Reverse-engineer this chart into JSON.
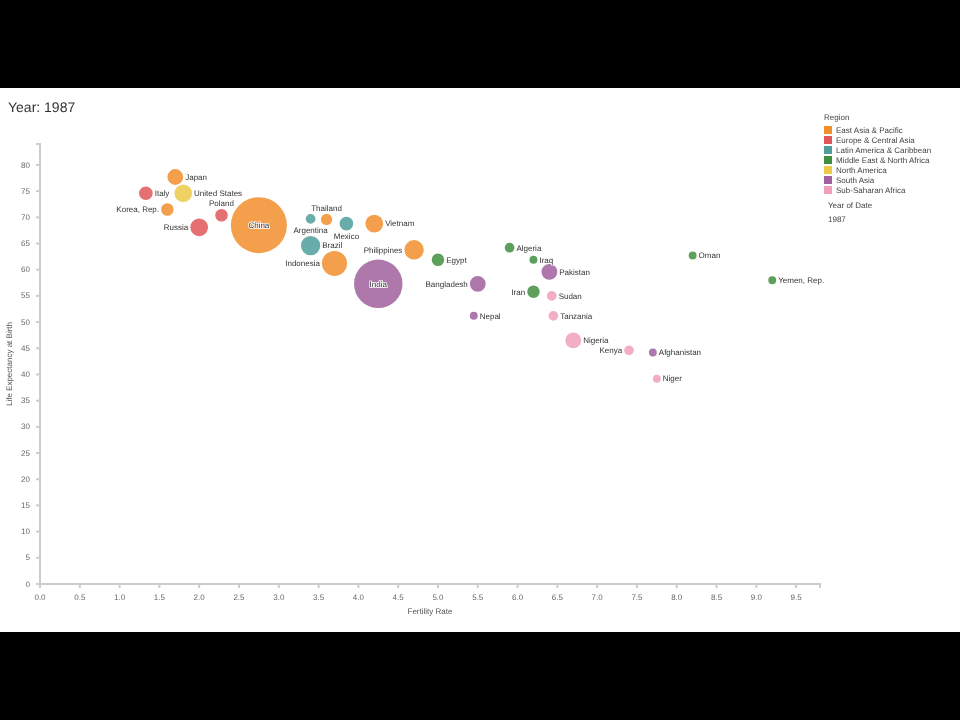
{
  "chart_data": {
    "type": "bubble",
    "title": "Year: 1987",
    "xlabel": "Fertility Rate",
    "ylabel": "Life Expectancy at Birth",
    "legend_title": "Region",
    "legend": "top right",
    "marker": "circle",
    "grid": false,
    "xlim": [
      0,
      9.8
    ],
    "ylim": [
      0,
      84
    ],
    "xticks": [
      {
        "value": 0,
        "label": "0.0"
      },
      {
        "value": 0.5,
        "label": "0.5"
      },
      {
        "value": 1,
        "label": "1.0"
      },
      {
        "value": 1.5,
        "label": "1.5"
      },
      {
        "value": 2,
        "label": "2.0"
      },
      {
        "value": 2.5,
        "label": "2.5"
      },
      {
        "value": 3,
        "label": "3.0"
      },
      {
        "value": 3.5,
        "label": "3.5"
      },
      {
        "value": 4,
        "label": "4.0"
      },
      {
        "value": 4.5,
        "label": "4.5"
      },
      {
        "value": 5,
        "label": "5.0"
      },
      {
        "value": 5.5,
        "label": "5.5"
      },
      {
        "value": 6,
        "label": "6.0"
      },
      {
        "value": 6.5,
        "label": "6.5"
      },
      {
        "value": 7,
        "label": "7.0"
      },
      {
        "value": 7.5,
        "label": "7.5"
      },
      {
        "value": 8,
        "label": "8.0"
      },
      {
        "value": 8.5,
        "label": "8.5"
      },
      {
        "value": 9,
        "label": "9.0"
      },
      {
        "value": 9.5,
        "label": "9.5"
      }
    ],
    "yticks": [
      0,
      5,
      10,
      15,
      20,
      25,
      30,
      35,
      40,
      45,
      50,
      55,
      60,
      65,
      70,
      75,
      80
    ],
    "series": [
      {
        "name": "East Asia & Pacific",
        "color": "#f28e2b",
        "x": [
          1.7,
          1.6,
          2.75,
          3.7,
          4.2,
          4.7,
          3.6
        ],
        "values": [
          77.7,
          71.5,
          68.5,
          61.2,
          68.8,
          63.8,
          69.6
        ],
        "sizes": [
          0.08,
          0.05,
          1,
          0.2,
          0.1,
          0.12,
          0.04
        ]
      },
      {
        "name": "Europe & Central Asia",
        "color": "#e15759",
        "x": [
          1.33,
          2.0,
          2.28
        ],
        "values": [
          74.6,
          68.1,
          70.4
        ],
        "sizes": [
          0.06,
          0.1,
          0.05
        ]
      },
      {
        "name": "Latin America & Caribbean",
        "color": "#4e9f9a",
        "x": [
          3.4,
          3.85,
          3.4
        ],
        "values": [
          64.6,
          68.8,
          69.7
        ],
        "sizes": [
          0.12,
          0.06,
          0.03
        ]
      },
      {
        "name": "Middle East & North Africa",
        "color": "#3f8f3f",
        "x": [
          5.0,
          5.9,
          6.2,
          6.2,
          8.2,
          9.2
        ],
        "values": [
          61.9,
          64.2,
          61.9,
          55.8,
          62.7,
          58.0
        ],
        "sizes": [
          0.05,
          0.03,
          0.02,
          0.05,
          0.02,
          0.02
        ]
      },
      {
        "name": "North America",
        "color": "#edc948",
        "x": [
          1.8
        ],
        "values": [
          74.6
        ],
        "sizes": [
          0.1
        ]
      },
      {
        "name": "South Asia",
        "color": "#a0609f",
        "x": [
          4.25,
          6.4,
          5.5,
          7.7,
          5.45
        ],
        "values": [
          57.3,
          59.6,
          57.3,
          44.2,
          51.2
        ],
        "sizes": [
          0.75,
          0.08,
          0.08,
          0.02,
          0.02
        ]
      },
      {
        "name": "Sub-Saharan Africa",
        "color": "#f0a0b8",
        "x": [
          6.7,
          7.4,
          6.43,
          6.45,
          7.75
        ],
        "values": [
          46.5,
          44.6,
          55.0,
          51.2,
          39.2
        ],
        "sizes": [
          0.08,
          0.03,
          0.03,
          0.03,
          0.02
        ]
      }
    ],
    "annotations": [
      {
        "text": "Japan",
        "x": 1.7,
        "y": 77.7
      },
      {
        "text": "Korea, Rep.",
        "x": 1.6,
        "y": 71.5
      },
      {
        "text": "China",
        "x": 2.75,
        "y": 68.5
      },
      {
        "text": "Indonesia",
        "x": 3.7,
        "y": 61.2
      },
      {
        "text": "Vietnam",
        "x": 4.2,
        "y": 68.8
      },
      {
        "text": "Philippines",
        "x": 4.7,
        "y": 63.8
      },
      {
        "text": "Thailand",
        "x": 3.6,
        "y": 69.6
      },
      {
        "text": "Italy",
        "x": 1.33,
        "y": 74.6
      },
      {
        "text": "Russia",
        "x": 2.0,
        "y": 68.1
      },
      {
        "text": "Poland",
        "x": 2.28,
        "y": 70.4
      },
      {
        "text": "Brazil",
        "x": 3.4,
        "y": 64.6
      },
      {
        "text": "Mexico",
        "x": 3.85,
        "y": 68.8
      },
      {
        "text": "Argentina",
        "x": 3.4,
        "y": 69.7
      },
      {
        "text": "Egypt",
        "x": 5.0,
        "y": 61.9
      },
      {
        "text": "Algeria",
        "x": 5.9,
        "y": 64.2
      },
      {
        "text": "Iraq",
        "x": 6.2,
        "y": 61.9
      },
      {
        "text": "Iran",
        "x": 6.2,
        "y": 55.8
      },
      {
        "text": "Oman",
        "x": 8.2,
        "y": 62.7
      },
      {
        "text": "Yemen, Rep.",
        "x": 9.2,
        "y": 58.0
      },
      {
        "text": "United States",
        "x": 1.8,
        "y": 74.6
      },
      {
        "text": "India",
        "x": 4.25,
        "y": 57.3
      },
      {
        "text": "Pakistan",
        "x": 6.4,
        "y": 59.6
      },
      {
        "text": "Bangladesh",
        "x": 5.5,
        "y": 57.3
      },
      {
        "text": "Afghanistan",
        "x": 7.7,
        "y": 44.2
      },
      {
        "text": "Nepal",
        "x": 5.45,
        "y": 51.2
      },
      {
        "text": "Nigeria",
        "x": 6.7,
        "y": 46.5
      },
      {
        "text": "Kenya",
        "x": 7.4,
        "y": 44.6
      },
      {
        "text": "Sudan",
        "x": 6.43,
        "y": 55.0
      },
      {
        "text": "Tanzania",
        "x": 6.45,
        "y": 51.2
      },
      {
        "text": "Niger",
        "x": 7.75,
        "y": 39.2
      },
      "Year of Date",
      "1987"
    ]
  }
}
